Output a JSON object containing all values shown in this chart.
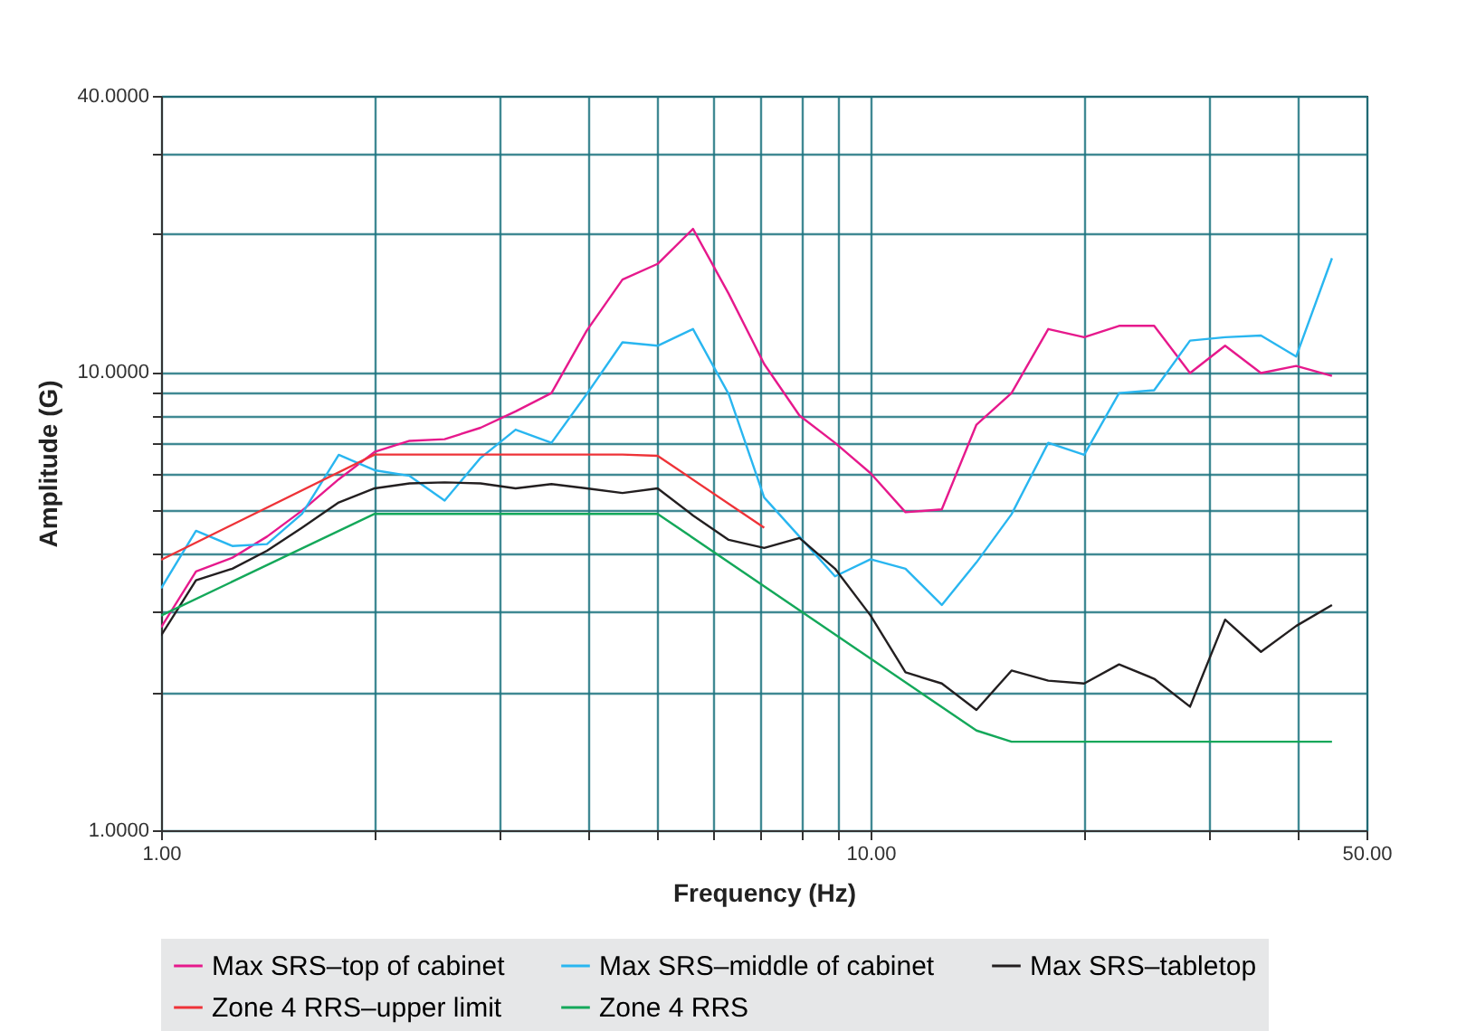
{
  "chart_data": {
    "type": "line",
    "xlabel": "Frequency (Hz)",
    "ylabel": "Amplitude (G)",
    "log": "xy",
    "grid": true,
    "legend": "bottom",
    "xlim": [
      1,
      50
    ],
    "ylim": [
      1,
      40
    ],
    "xticks": [
      {
        "value": 1,
        "label": "1.00"
      },
      {
        "value": 2,
        "label": null
      },
      {
        "value": 3,
        "label": null
      },
      {
        "value": 4,
        "label": null
      },
      {
        "value": 5,
        "label": null
      },
      {
        "value": 6,
        "label": null
      },
      {
        "value": 7,
        "label": null
      },
      {
        "value": 8,
        "label": null
      },
      {
        "value": 9,
        "label": null
      },
      {
        "value": 10,
        "label": "10.00"
      },
      {
        "value": 20,
        "label": null
      },
      {
        "value": 30,
        "label": null
      },
      {
        "value": 40,
        "label": null
      },
      {
        "value": 50,
        "label": "50.00"
      }
    ],
    "yticks": [
      {
        "value": 1,
        "label": "1.0000"
      },
      {
        "value": 2,
        "label": null
      },
      {
        "value": 3,
        "label": null
      },
      {
        "value": 4,
        "label": null
      },
      {
        "value": 5,
        "label": null
      },
      {
        "value": 6,
        "label": null
      },
      {
        "value": 7,
        "label": null
      },
      {
        "value": 8,
        "label": null
      },
      {
        "value": 9,
        "label": null
      },
      {
        "value": 10,
        "label": "10.0000"
      },
      {
        "value": 20,
        "label": null
      },
      {
        "value": 30,
        "label": null
      },
      {
        "value": 40,
        "label": "40.0000"
      }
    ],
    "x": [
      1,
      1.12,
      1.26,
      1.41,
      1.58,
      1.78,
      2,
      2.24,
      2.51,
      2.82,
      3.16,
      3.55,
      3.98,
      4.47,
      5.01,
      5.62,
      6.31,
      7.08,
      7.94,
      8.91,
      10,
      11.2,
      12.6,
      14.1,
      15.8,
      17.8,
      20,
      22.4,
      25.1,
      28.2,
      31.6,
      35.5,
      39.8,
      44.7
    ],
    "series": [
      {
        "name": "Max SRS–top of cabinet",
        "color": "#e6198c",
        "values": [
          2.77,
          3.67,
          3.93,
          4.37,
          4.98,
          5.83,
          6.69,
          7.07,
          7.13,
          7.55,
          8.2,
          8.99,
          12.3,
          15.9,
          17.2,
          20.5,
          14.8,
          10.4,
          8.03,
          7.0,
          6.01,
          4.94,
          5.01,
          7.67,
          8.99,
          12.4,
          11.9,
          12.6,
          12.6,
          9.94,
          11.4,
          9.94,
          10.3,
          9.8
        ]
      },
      {
        "name": "Max SRS–middle of cabinet",
        "color": "#29b6f0",
        "values": [
          3.37,
          4.5,
          4.17,
          4.21,
          4.9,
          6.59,
          6.1,
          5.93,
          5.24,
          6.49,
          7.48,
          7.0,
          8.94,
          11.6,
          11.4,
          12.4,
          8.94,
          5.32,
          4.37,
          3.58,
          3.9,
          3.72,
          3.1,
          3.84,
          4.89,
          7.0,
          6.59,
          8.99,
          9.12,
          11.7,
          11.9,
          12.0,
          10.8,
          17.7
        ]
      },
      {
        "name": "Max SRS–tabletop",
        "color": "#231f20",
        "values": [
          2.66,
          3.51,
          3.72,
          4.07,
          4.57,
          5.19,
          5.57,
          5.71,
          5.74,
          5.71,
          5.57,
          5.69,
          5.57,
          5.44,
          5.57,
          4.86,
          4.3,
          4.13,
          4.34,
          3.72,
          2.94,
          2.21,
          2.09,
          1.83,
          2.23,
          2.12,
          2.09,
          2.3,
          2.14,
          1.86,
          2.88,
          2.45,
          2.79,
          3.1
        ]
      },
      {
        "name": "Zone 4 RRS–upper limit",
        "color": "#ee3338",
        "x": [
          1,
          2,
          4.47,
          5.01,
          7.08
        ],
        "values": [
          3.89,
          6.6,
          6.6,
          6.56,
          4.57
        ]
      },
      {
        "name": "Zone 4 RRS",
        "color": "#14a85a",
        "x": [
          1,
          2,
          5.01,
          14.1,
          15.8,
          44.7
        ],
        "values": [
          2.94,
          4.9,
          4.9,
          1.65,
          1.56,
          1.56
        ]
      }
    ]
  }
}
